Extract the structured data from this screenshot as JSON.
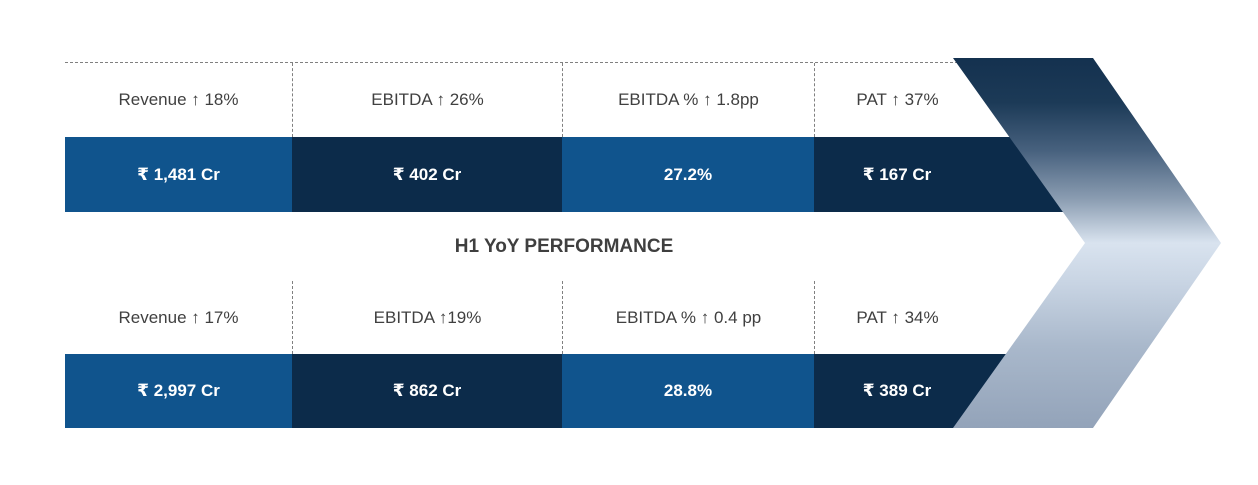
{
  "title": "H1 YoY PERFORMANCE",
  "sections": [
    {
      "metrics": [
        {
          "label": "Revenue ↑ 18%",
          "value": "₹ 1,481 Cr"
        },
        {
          "label": "EBITDA ↑ 26%",
          "value": "₹ 402 Cr"
        },
        {
          "label": "EBITDA % ↑ 1.8pp",
          "value": "27.2%"
        },
        {
          "label": "PAT ↑ 37%",
          "value": "₹ 167 Cr"
        }
      ]
    },
    {
      "metrics": [
        {
          "label": "Revenue ↑ 17%",
          "value": "₹ 2,997 Cr"
        },
        {
          "label": "EBITDA ↑19%",
          "value": "₹ 862 Cr"
        },
        {
          "label": "EBITDA % ↑ 0.4 pp",
          "value": "28.8%"
        },
        {
          "label": "PAT ↑ 34%",
          "value": "₹ 389 Cr"
        }
      ]
    }
  ],
  "colors": {
    "bar-blue": "#10548D",
    "bar-navy": "#0C2B4A",
    "chevron-dark": "#14314F",
    "chevron-light": "#D9E3EF",
    "chevron-mid": "#93A3B9",
    "label-text": "#404040",
    "title-text": "#3F3F3F",
    "dash-line": "#808080"
  },
  "chart_data": {
    "type": "table",
    "title": "H1 YoY PERFORMANCE",
    "sections": [
      {
        "metrics": [
          "Revenue",
          "EBITDA",
          "EBITDA %",
          "PAT"
        ],
        "yoy_changes": [
          "↑ 18%",
          "↑ 26%",
          "↑ 1.8pp",
          "↑ 37%"
        ],
        "values": [
          "₹ 1,481 Cr",
          "₹ 402 Cr",
          "27.2%",
          "₹ 167 Cr"
        ]
      },
      {
        "metrics": [
          "Revenue",
          "EBITDA",
          "EBITDA %",
          "PAT"
        ],
        "yoy_changes": [
          "↑ 17%",
          "↑19%",
          "↑ 0.4 pp",
          "↑ 34%"
        ],
        "values": [
          "₹ 2,997 Cr",
          "₹ 862 Cr",
          "28.8%",
          "₹ 389 Cr"
        ]
      }
    ],
    "layout": "two horizontal metric bands separated by centered title; value cells alternate blue/navy; large right-pointing gradient chevron overlaps right edge"
  }
}
